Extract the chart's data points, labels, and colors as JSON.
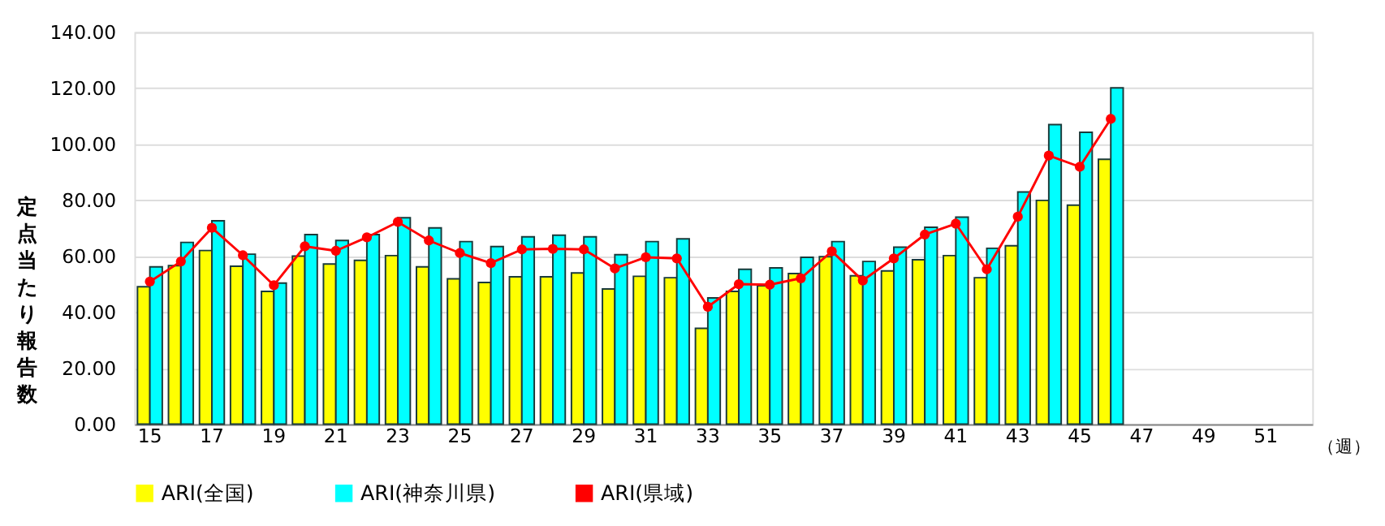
{
  "chart_data": {
    "type": "bar",
    "ylabel": "定点当たり報告数",
    "xlabel": "（週）",
    "categories": [
      "15",
      null,
      "17",
      null,
      "19",
      null,
      "21",
      null,
      "23",
      null,
      "25",
      null,
      "27",
      null,
      "29",
      null,
      "31",
      null,
      "33",
      null,
      "35",
      null,
      "37",
      null,
      "39",
      null,
      "41",
      null,
      "43",
      null,
      "45",
      null,
      "47",
      null,
      "49",
      null,
      "51",
      null
    ],
    "series": [
      {
        "name": "ARI(全国)",
        "color": "#ffff00",
        "values": [
          49.1,
          56.6,
          62.0,
          56.4,
          47.4,
          60.0,
          57.2,
          58.5,
          60.2,
          56.2,
          51.9,
          50.6,
          52.6,
          52.6,
          54.0,
          48.3,
          52.8,
          52.3,
          34.2,
          47.4,
          49.4,
          53.8,
          59.8,
          53.0,
          54.7,
          58.7,
          60.2,
          52.3,
          63.7,
          79.9,
          78.2,
          94.6,
          null,
          null,
          null,
          null,
          null,
          null
        ]
      },
      {
        "name": "ARI(神奈川県)",
        "color": "#00ffff",
        "values": [
          56.2,
          64.9,
          72.6,
          60.7,
          50.4,
          67.7,
          65.6,
          67.7,
          73.7,
          70.1,
          65.2,
          63.4,
          66.9,
          67.5,
          66.9,
          60.5,
          65.2,
          66.2,
          45.1,
          55.3,
          55.8,
          59.6,
          65.2,
          58.1,
          63.2,
          70.3,
          73.9,
          62.8,
          82.9,
          107.0,
          104.2,
          120.1,
          null,
          null,
          null,
          null,
          null,
          null
        ]
      },
      {
        "name": "ARI(県域)",
        "color": "#ff0000",
        "type": "line",
        "marker": "circle",
        "values": [
          50.9,
          58.1,
          70.1,
          60.3,
          49.6,
          63.5,
          61.9,
          66.7,
          72.2,
          65.6,
          61.1,
          57.5,
          62.4,
          62.6,
          62.4,
          55.6,
          59.6,
          59.2,
          41.9,
          50.0,
          49.8,
          52.1,
          61.7,
          51.3,
          59.2,
          67.7,
          71.6,
          55.3,
          74.1,
          95.9,
          91.9,
          109.0,
          null,
          null,
          null,
          null,
          null,
          null
        ]
      }
    ],
    "ylim": [
      0,
      140
    ],
    "yticks": [
      {
        "value": 0,
        "label": "0.00"
      },
      {
        "value": 20,
        "label": "20.00"
      },
      {
        "value": 40,
        "label": "40.00"
      },
      {
        "value": 60,
        "label": "60.00"
      },
      {
        "value": 80,
        "label": "80.00"
      },
      {
        "value": 100,
        "label": "100.00"
      },
      {
        "value": 120,
        "label": "120.00"
      },
      {
        "value": 140,
        "label": "140.00"
      }
    ],
    "grid": "y",
    "legend": "bottom"
  }
}
